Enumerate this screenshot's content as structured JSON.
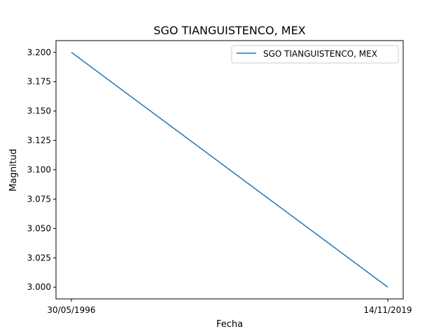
{
  "chart_data": {
    "type": "line",
    "title": "SGO TIANGUISTENCO, MEX",
    "xlabel": "Fecha",
    "ylabel": "Magnitud",
    "x": [
      "30/05/1996",
      "14/11/2019"
    ],
    "series": [
      {
        "name": "SGO TIANGUISTENCO, MEX",
        "values": [
          3.2,
          3.0
        ],
        "color": "#1f77b4"
      }
    ],
    "ylim": [
      2.99,
      3.21
    ],
    "yticks": [
      "3.000",
      "3.025",
      "3.050",
      "3.075",
      "3.100",
      "3.125",
      "3.150",
      "3.175",
      "3.200"
    ],
    "grid": false,
    "legend_position": "top-right"
  }
}
